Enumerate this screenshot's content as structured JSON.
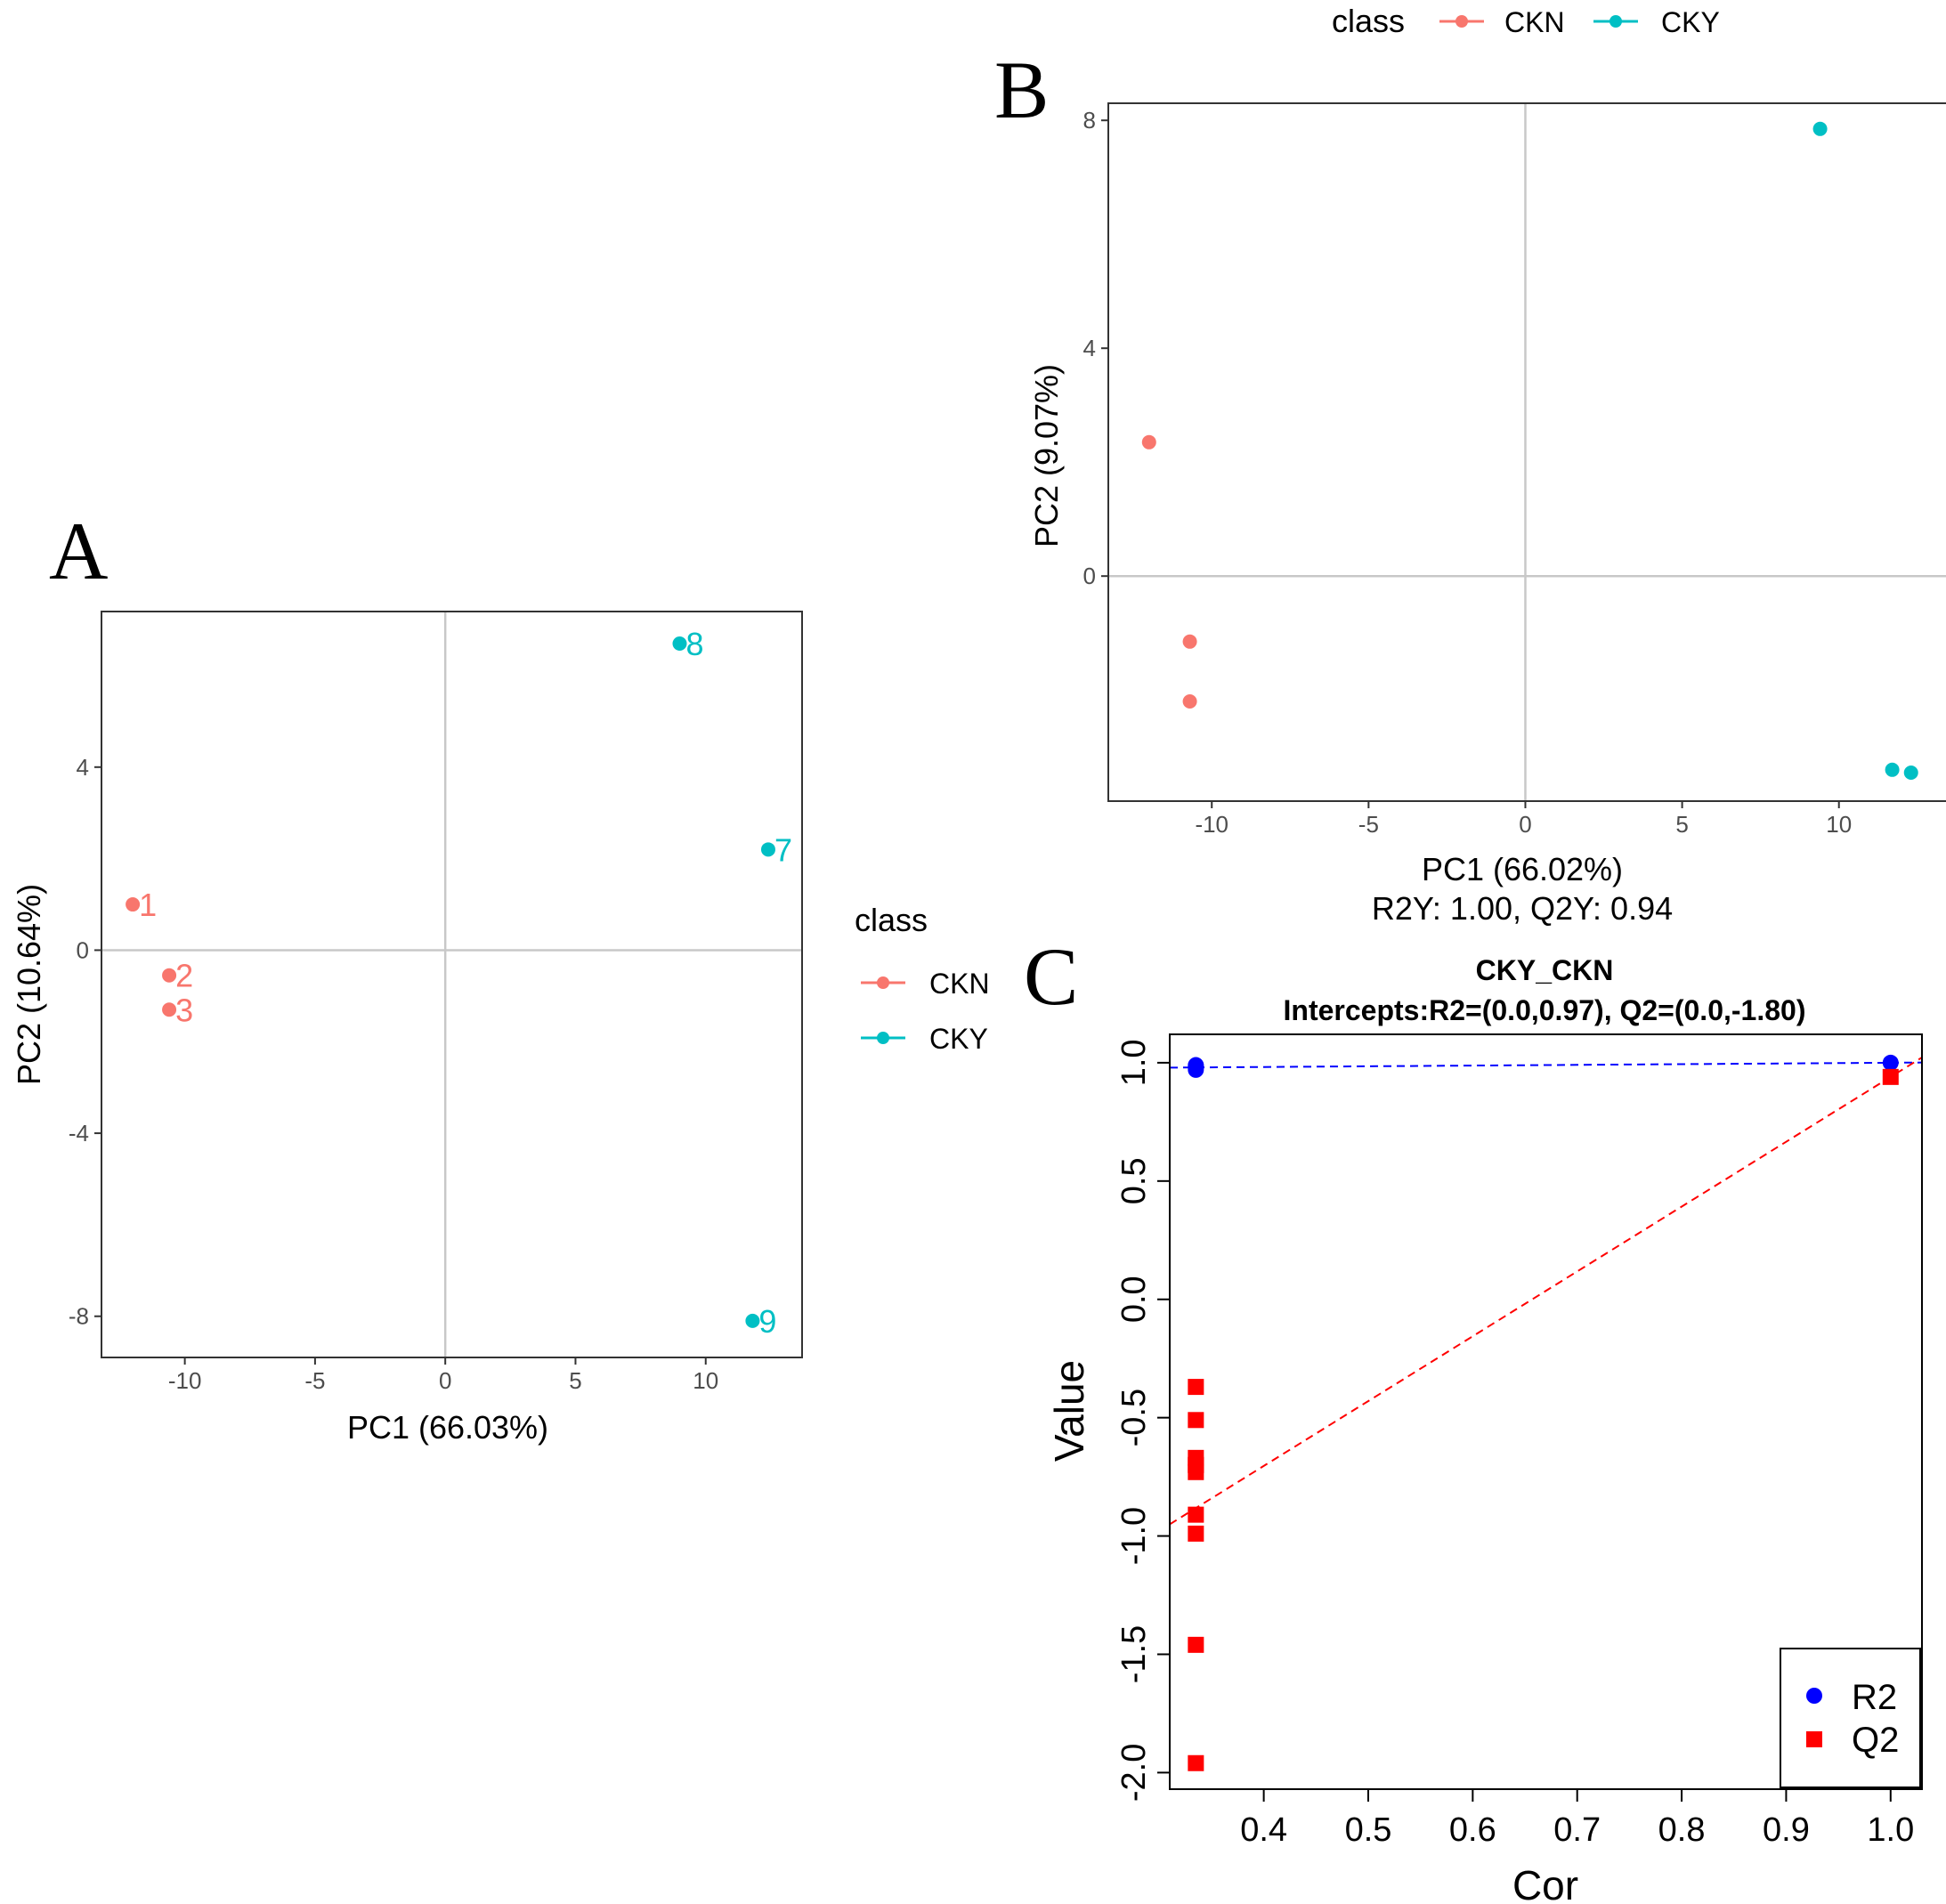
{
  "panels": {
    "a": "A",
    "b": "B",
    "c": "C"
  },
  "colors": {
    "ckn": "#F8766D",
    "cky": "#00BFC4",
    "r2": "#0000FF",
    "q2": "#FF0000"
  },
  "chart_data": [
    {
      "id": "A",
      "type": "scatter",
      "xlabel": "PC1 (66.03%)",
      "ylabel": "PC2 (10.64%)",
      "xlim": [
        -13.2,
        13.7
      ],
      "ylim": [
        -8.9,
        7.4
      ],
      "xticks": [
        -10,
        -5,
        0,
        5,
        10
      ],
      "yticks": [
        4,
        0,
        -4,
        -8
      ],
      "xtick_labels": [
        "-10",
        "-5",
        "0",
        "5",
        "10"
      ],
      "ytick_labels": [
        "4",
        "0",
        "-4",
        "-8"
      ],
      "legend": {
        "title": "class",
        "entries": [
          "CKN",
          "CKY"
        ],
        "placement": "right"
      },
      "series": [
        {
          "name": "CKN",
          "points": [
            {
              "label": "1",
              "x": -12.0,
              "y": 1.0
            },
            {
              "label": "2",
              "x": -10.6,
              "y": -0.55
            },
            {
              "label": "3",
              "x": -10.6,
              "y": -1.3
            }
          ]
        },
        {
          "name": "CKY",
          "points": [
            {
              "label": "7",
              "x": 12.4,
              "y": 2.2
            },
            {
              "label": "8",
              "x": 9.0,
              "y": 6.7
            },
            {
              "label": "9",
              "x": 11.8,
              "y": -8.1
            }
          ]
        }
      ]
    },
    {
      "id": "B",
      "type": "scatter",
      "xlabel": "PC1 (66.02%)",
      "subtitle": "R2Y: 1.00, Q2Y: 0.94",
      "ylabel": "PC2 (9.07%)",
      "xlim": [
        -13.3,
        13.5
      ],
      "ylim": [
        -3.95,
        8.3
      ],
      "xticks": [
        -10,
        -5,
        0,
        5,
        10
      ],
      "yticks": [
        8,
        4,
        0
      ],
      "xtick_labels": [
        "-10",
        "-5",
        "0",
        "5",
        "10"
      ],
      "ytick_labels": [
        "8",
        "4",
        "0"
      ],
      "legend": {
        "title": "class",
        "entries": [
          "CKN",
          "CKY"
        ],
        "placement": "top"
      },
      "series": [
        {
          "name": "CKN",
          "points": [
            {
              "x": -12.0,
              "y": 2.35
            },
            {
              "x": -10.7,
              "y": -1.15
            },
            {
              "x": -10.7,
              "y": -2.2
            }
          ]
        },
        {
          "name": "CKY",
          "points": [
            {
              "x": 9.4,
              "y": 7.85
            },
            {
              "x": 11.7,
              "y": -3.4
            },
            {
              "x": 12.3,
              "y": -3.45
            }
          ]
        }
      ]
    },
    {
      "id": "C",
      "type": "scatter",
      "title": "CKY_CKN",
      "subtitle": "Intercepts:R2=(0.0,0.97), Q2=(0.0,-1.80)",
      "xlabel": "Cor",
      "ylabel": "Value",
      "xlim": [
        0.31,
        1.03
      ],
      "ylim": [
        -2.07,
        1.12
      ],
      "xticks": [
        0.4,
        0.5,
        0.6,
        0.7,
        0.8,
        0.9,
        1.0
      ],
      "yticks": [
        1.0,
        0.5,
        0.0,
        -0.5,
        -1.0,
        -1.5,
        -2.0
      ],
      "xtick_labels": [
        "0.4",
        "0.5",
        "0.6",
        "0.7",
        "0.8",
        "0.9",
        "1.0"
      ],
      "ytick_labels": [
        "1.0",
        "0.5",
        "0.0",
        "-0.5",
        "-1.0",
        "-1.5",
        "-2.0"
      ],
      "legend": {
        "entries": [
          "R2",
          "Q2"
        ],
        "placement": "bottom-right"
      },
      "series": [
        {
          "name": "R2",
          "x": [
            0.335,
            0.335,
            0.335,
            0.335,
            1.0
          ],
          "y": [
            0.99,
            0.98,
            0.97,
            0.985,
            1.0
          ]
        },
        {
          "name": "Q2",
          "x": [
            0.335,
            0.335,
            0.335,
            0.335,
            0.335,
            0.335,
            0.335,
            0.335,
            0.335,
            0.335,
            1.0
          ],
          "y": [
            -0.37,
            -0.51,
            -0.67,
            -0.7,
            -0.73,
            -0.91,
            -0.99,
            -1.46,
            -1.96,
            -0.7,
            0.94
          ]
        }
      ],
      "regression_lines": [
        {
          "name": "R2",
          "intercept": 0.97,
          "slope": 0.03
        },
        {
          "name": "Q2",
          "intercept": -1.8,
          "slope": 2.74
        }
      ]
    }
  ]
}
